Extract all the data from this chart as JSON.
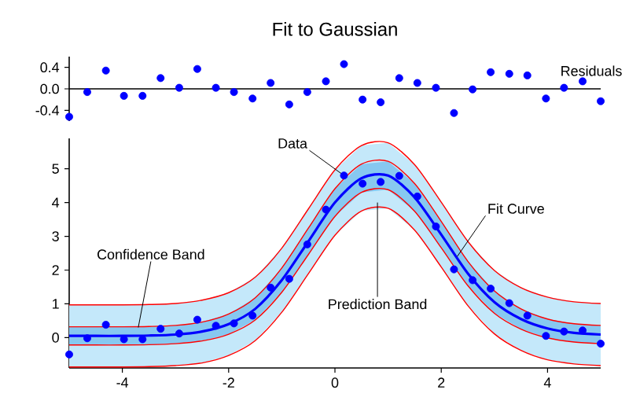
{
  "chart_data": [
    {
      "type": "scatter",
      "title": "Fit to Gaussian",
      "annotations": [
        "Residuals"
      ],
      "xlim": [
        -5,
        5
      ],
      "ylim": [
        -0.6,
        0.6
      ],
      "yticks": [
        -0.4,
        {
          "value": 0,
          "label": "0.0"
        },
        0.4
      ],
      "tick_labels": "y",
      "ref_lines": [
        {
          "axis": "y",
          "value": 0,
          "color": "#000000"
        }
      ],
      "series": [
        {
          "marker": "circle",
          "color": "#0000ff",
          "x": [
            -5,
            -4.66,
            -4.31,
            -3.97,
            -3.62,
            -3.28,
            -2.93,
            -2.59,
            -2.24,
            -1.9,
            -1.55,
            -1.21,
            -0.86,
            -0.52,
            -0.17,
            0.17,
            0.52,
            0.86,
            1.21,
            1.55,
            1.9,
            2.24,
            2.59,
            2.93,
            3.28,
            3.62,
            3.97,
            4.31,
            4.66,
            5
          ],
          "values": [
            -0.52,
            -0.06,
            0.34,
            -0.13,
            -0.13,
            0.2,
            0.02,
            0.37,
            0.02,
            -0.06,
            -0.18,
            0.11,
            -0.29,
            -0.06,
            0.14,
            0.46,
            -0.2,
            -0.25,
            0.2,
            0.11,
            0.02,
            -0.45,
            -0.01,
            0.31,
            0.28,
            0.25,
            -0.18,
            0.02,
            0.14,
            -0.23
          ]
        }
      ]
    },
    {
      "type": "scatter",
      "xlim": [
        -5,
        5
      ],
      "ylim": [
        -0.9,
        5.9
      ],
      "xticks": [
        -4,
        -2,
        0,
        2,
        4
      ],
      "yticks": [
        0,
        1,
        2,
        3,
        4,
        5
      ],
      "annotations": [
        {
          "text": "Data",
          "x": 0.17,
          "y": 4.8
        },
        {
          "text": "Fit Curve",
          "x": 2.3,
          "y": 2.4
        },
        {
          "text": "Confidence Band",
          "x": -3.7,
          "y": 0.3
        },
        {
          "text": "Prediction Band",
          "x": 0.8,
          "y": 4.0
        }
      ],
      "series": [
        {
          "type": "line",
          "marker": "none",
          "color": "#ff0000",
          "x": [
            -5,
            -4.5,
            -4,
            -3.5,
            -3,
            -2.5,
            -2,
            -1.5,
            -1,
            -0.5,
            0,
            0.5,
            1,
            1.5,
            2,
            2.5,
            3,
            3.5,
            4,
            4.5,
            5
          ],
          "values": [
            0.97,
            0.97,
            0.97,
            0.98,
            1.01,
            1.11,
            1.33,
            1.79,
            2.65,
            3.81,
            4.97,
            5.69,
            5.77,
            5.12,
            4.01,
            2.85,
            1.99,
            1.48,
            1.2,
            1.06,
            1.01
          ],
          "lower": [
            -0.87,
            -0.87,
            -0.87,
            -0.86,
            -0.83,
            -0.75,
            -0.53,
            -0.09,
            0.75,
            1.89,
            3.03,
            3.75,
            3.83,
            3.18,
            2.09,
            0.95,
            0.11,
            -0.38,
            -0.66,
            -0.78,
            -0.83
          ],
          "upper": [
            0.97,
            0.97,
            0.97,
            0.98,
            1.01,
            1.11,
            1.33,
            1.79,
            2.65,
            3.81,
            4.97,
            5.69,
            5.77,
            5.12,
            4.01,
            2.85,
            1.99,
            1.48,
            1.2,
            1.06,
            1.01
          ]
        },
        {
          "type": "line",
          "marker": "none",
          "color": "#ff0000",
          "x": [
            -5,
            -4.5,
            -4,
            -3.5,
            -3,
            -2.5,
            -2,
            -1.5,
            -1,
            -0.5,
            0,
            0.5,
            1,
            1.5,
            2,
            2.5,
            3,
            3.5,
            4,
            4.5,
            5
          ],
          "values": [
            -0.87,
            -0.87,
            -0.87,
            -0.86,
            -0.83,
            -0.75,
            -0.53,
            -0.09,
            0.75,
            1.89,
            3.03,
            3.75,
            3.83,
            3.18,
            2.09,
            0.95,
            0.11,
            -0.38,
            -0.66,
            -0.78,
            -0.83
          ]
        },
        {
          "type": "line",
          "marker": "none",
          "color": "#ff0000",
          "x": [
            -5,
            -4.5,
            -4,
            -3.5,
            -3,
            -2.5,
            -2,
            -1.5,
            -1,
            -0.5,
            0,
            0.5,
            1,
            1.5,
            2,
            2.5,
            3,
            3.5,
            4,
            4.5,
            5
          ],
          "values": [
            0.32,
            0.32,
            0.32,
            0.33,
            0.36,
            0.46,
            0.7,
            1.18,
            2.06,
            3.24,
            4.41,
            5.14,
            5.22,
            4.56,
            3.44,
            2.26,
            1.38,
            0.85,
            0.55,
            0.41,
            0.36
          ]
        },
        {
          "type": "line",
          "marker": "none",
          "color": "#ff0000",
          "x": [
            -5,
            -4.5,
            -4,
            -3.5,
            -3,
            -2.5,
            -2,
            -1.5,
            -1,
            -0.5,
            0,
            0.5,
            1,
            1.5,
            2,
            2.5,
            3,
            3.5,
            4,
            4.5,
            5
          ],
          "values": [
            -0.22,
            -0.22,
            -0.22,
            -0.21,
            -0.18,
            -0.1,
            0.1,
            0.52,
            1.34,
            2.46,
            3.59,
            4.3,
            4.38,
            3.74,
            2.66,
            1.54,
            0.72,
            0.25,
            -0.01,
            -0.13,
            -0.18
          ]
        },
        {
          "type": "line",
          "marker": "none",
          "color": "#0000ff",
          "x": [
            -5,
            -4.5,
            -4,
            -3.5,
            -3,
            -2.5,
            -2,
            -1.5,
            -1,
            -0.5,
            0,
            0.5,
            1,
            1.5,
            2,
            2.5,
            3,
            3.5,
            4,
            4.5,
            5
          ],
          "values": [
            0.05,
            0.05,
            0.05,
            0.06,
            0.09,
            0.18,
            0.4,
            0.85,
            1.7,
            2.85,
            4.0,
            4.72,
            4.8,
            4.15,
            3.05,
            1.9,
            1.05,
            0.55,
            0.27,
            0.14,
            0.09
          ],
          "lower": [
            -0.22,
            -0.22,
            -0.22,
            -0.21,
            -0.18,
            -0.1,
            0.1,
            0.52,
            1.34,
            2.46,
            3.59,
            4.3,
            4.38,
            3.74,
            2.66,
            1.54,
            0.72,
            0.25,
            -0.01,
            -0.13,
            -0.18
          ],
          "upper": [
            0.32,
            0.32,
            0.32,
            0.33,
            0.36,
            0.46,
            0.7,
            1.18,
            2.06,
            3.24,
            4.41,
            5.14,
            5.22,
            4.56,
            3.44,
            2.26,
            1.38,
            0.85,
            0.55,
            0.41,
            0.36
          ]
        },
        {
          "marker": "circle",
          "color": "#0000ff",
          "x": [
            -5,
            -4.66,
            -4.31,
            -3.97,
            -3.62,
            -3.28,
            -2.93,
            -2.59,
            -2.24,
            -1.9,
            -1.55,
            -1.21,
            -0.86,
            -0.52,
            -0.17,
            0.17,
            0.52,
            0.86,
            1.21,
            1.55,
            1.9,
            2.24,
            2.59,
            2.93,
            3.28,
            3.62,
            3.97,
            4.31,
            4.66,
            5
          ],
          "values": [
            -0.5,
            -0.02,
            0.38,
            -0.05,
            -0.05,
            0.26,
            0.12,
            0.53,
            0.35,
            0.42,
            0.65,
            1.48,
            1.74,
            2.76,
            3.79,
            4.8,
            4.56,
            4.61,
            4.79,
            4.18,
            3.29,
            2.02,
            1.7,
            1.45,
            1.02,
            0.65,
            0.05,
            0.18,
            0.21,
            -0.18
          ]
        }
      ]
    }
  ]
}
